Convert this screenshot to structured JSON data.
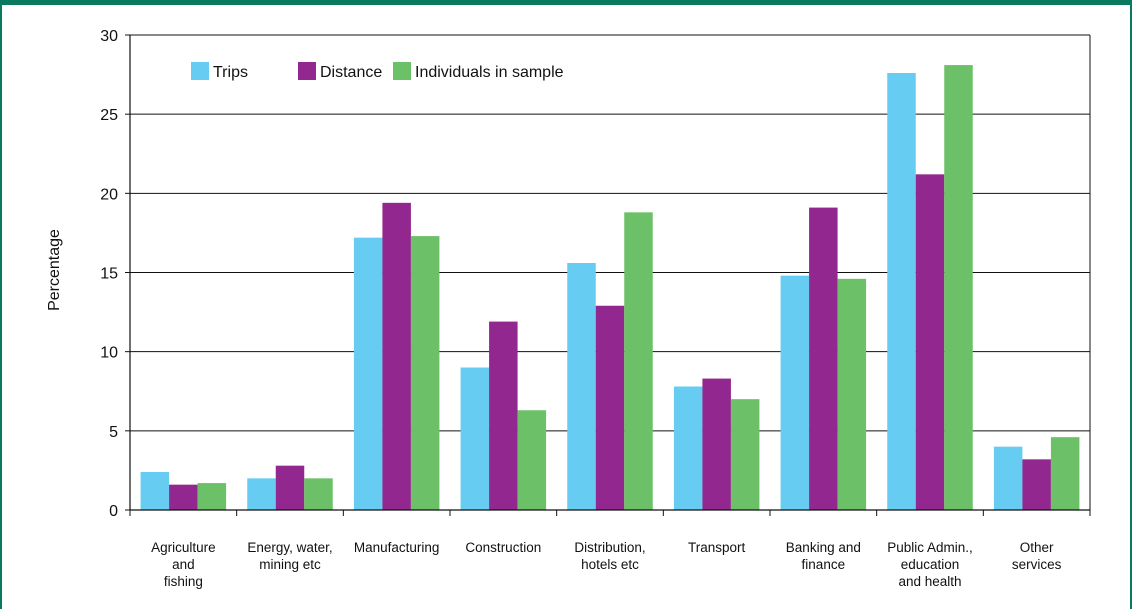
{
  "chart_data": {
    "type": "bar",
    "title": "",
    "xlabel": "",
    "ylabel": "Percentage",
    "ylim": [
      0,
      30
    ],
    "yticks": [
      0,
      5,
      10,
      15,
      20,
      25,
      30
    ],
    "grid": true,
    "legend_position": "top-left",
    "categories": [
      [
        "Agriculture",
        "and",
        "fishing"
      ],
      [
        "Energy, water,",
        "mining etc"
      ],
      [
        "Manufacturing"
      ],
      [
        "Construction"
      ],
      [
        "Distribution,",
        "hotels etc"
      ],
      [
        "Transport"
      ],
      [
        "Banking and",
        "finance"
      ],
      [
        "Public Admin.,",
        "education",
        "and health"
      ],
      [
        "Other",
        "services"
      ]
    ],
    "series": [
      {
        "name": "Trips",
        "color": "#66ccf2",
        "values": [
          2.4,
          2.0,
          17.2,
          9.0,
          15.6,
          7.8,
          14.8,
          27.6,
          4.0
        ]
      },
      {
        "name": "Distance",
        "color": "#92278f",
        "values": [
          1.6,
          2.8,
          19.4,
          11.9,
          12.9,
          8.3,
          19.1,
          21.2,
          3.2
        ]
      },
      {
        "name": "Individuals in sample",
        "color": "#6cc067",
        "values": [
          1.7,
          2.0,
          17.3,
          6.3,
          18.8,
          7.0,
          14.6,
          28.1,
          4.6
        ]
      }
    ]
  }
}
